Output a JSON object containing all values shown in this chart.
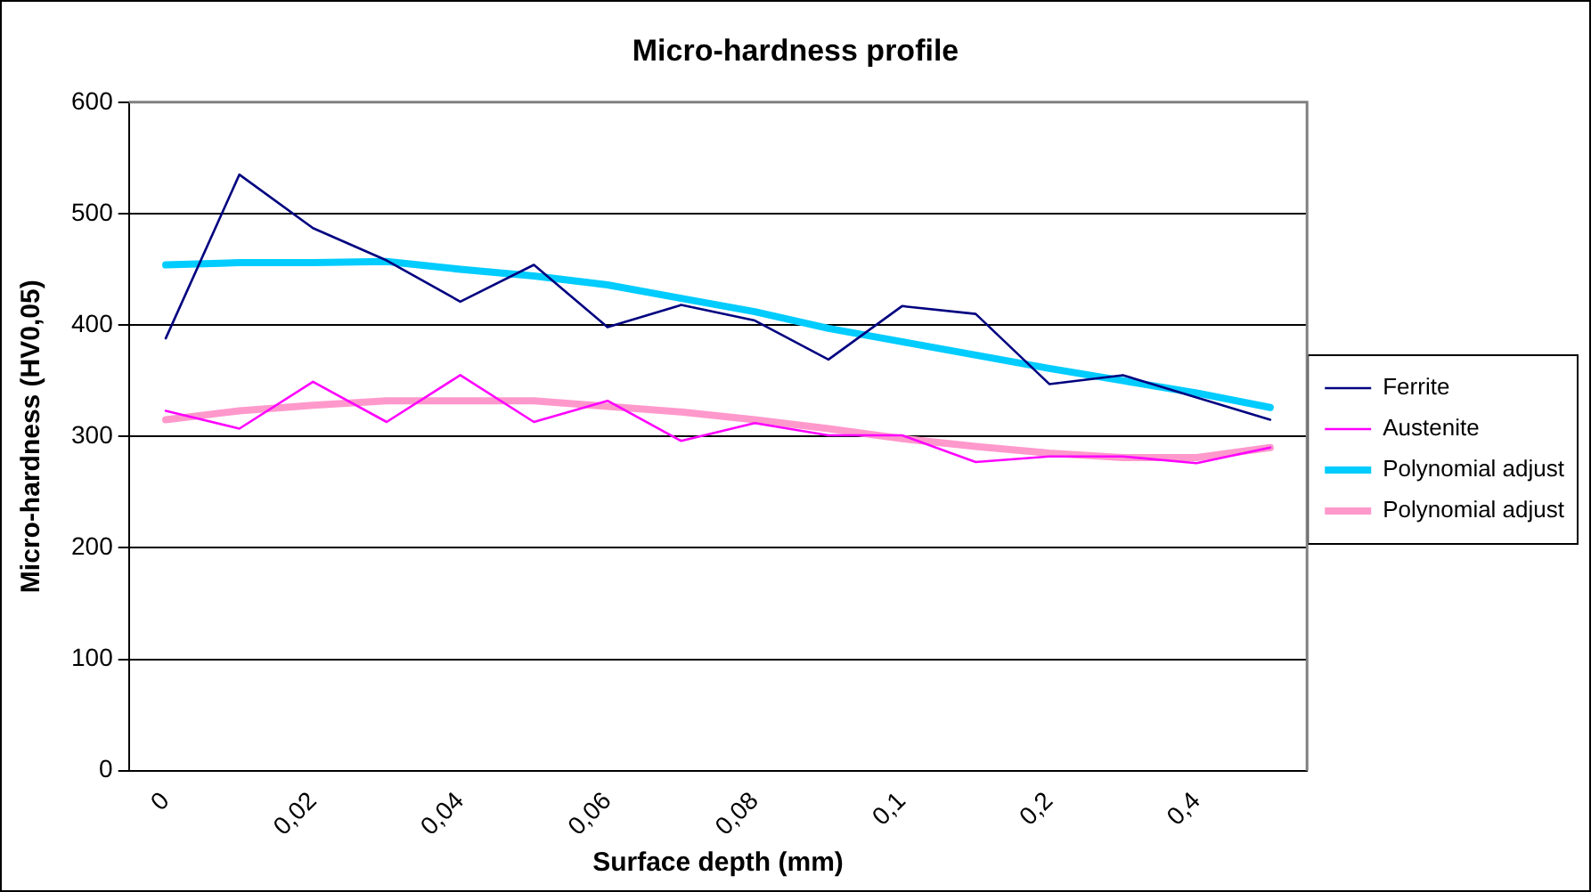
{
  "chart_data": {
    "type": "line",
    "title": "Micro-hardness profile",
    "xlabel": "Surface depth (mm)",
    "ylabel": "Micro-hardness (HV0,05)",
    "categories": [
      "0",
      null,
      "0,02",
      null,
      "0,04",
      null,
      "0,06",
      null,
      "0,08",
      null,
      "0,1",
      null,
      "0,2",
      null,
      "0,4",
      null
    ],
    "series": [
      {
        "name": "Ferrite",
        "color": "#000080",
        "values": [
          388,
          535,
          487,
          458,
          421,
          454,
          398,
          418,
          404,
          369,
          417,
          410,
          347,
          355,
          335,
          315
        ]
      },
      {
        "name": "Austenite",
        "color": "#ff00ff",
        "values": [
          323,
          307,
          349,
          313,
          355,
          313,
          332,
          296,
          312,
          301,
          301,
          277,
          282,
          282,
          276,
          290
        ]
      },
      {
        "name": "Polynomial adjust",
        "color": "#00ccff",
        "values": [
          454,
          456,
          456,
          457,
          450,
          444,
          436,
          424,
          412,
          397,
          385,
          373,
          361,
          350,
          339,
          326
        ]
      },
      {
        "name": "Polynomial adjust",
        "color": "#ff99cc",
        "values": [
          315,
          323,
          328,
          332,
          332,
          332,
          327,
          322,
          315,
          307,
          298,
          291,
          285,
          281,
          281,
          290
        ]
      }
    ],
    "ylim": [
      0,
      600
    ],
    "yticks": [
      0,
      100,
      200,
      300,
      400,
      500,
      600
    ],
    "grid": "y",
    "legend": "right",
    "marker": "none",
    "line_style": "solid"
  }
}
